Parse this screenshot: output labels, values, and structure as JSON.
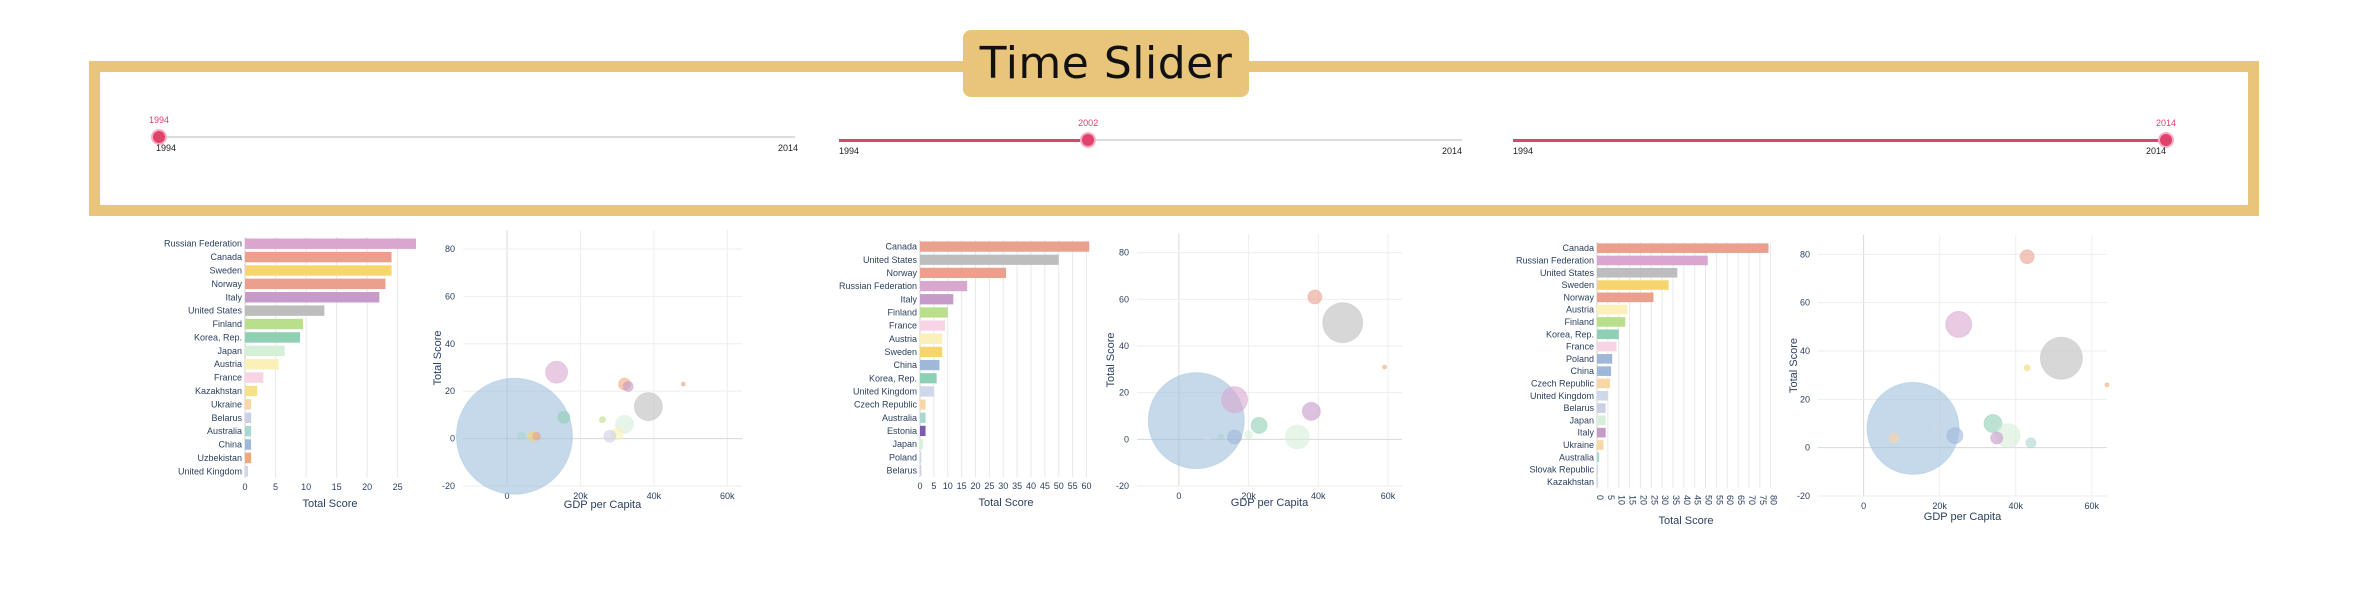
{
  "title": "Time Slider",
  "accent_color": "#e0426b",
  "frame_color": "#e8c57a",
  "sliders": [
    {
      "value": "1994",
      "min_label": "1994",
      "max_label": "2014",
      "fraction": 0.0
    },
    {
      "value": "2002",
      "min_label": "1994",
      "max_label": "2014",
      "fraction": 0.4
    },
    {
      "value": "2014",
      "min_label": "1994",
      "max_label": "2014",
      "fraction": 1.0
    }
  ],
  "chart_data": [
    {
      "type": "bar",
      "orientation": "horizontal",
      "xlabel": "Total Score",
      "xlim": [
        0,
        28
      ],
      "xticks": [
        "0",
        "5",
        "10",
        "15",
        "20",
        "25"
      ],
      "categories": [
        "Russian Federation",
        "Canada",
        "Sweden",
        "Norway",
        "Italy",
        "United States",
        "Finland",
        "Korea, Rep.",
        "Japan",
        "Austria",
        "France",
        "Kazakhstan",
        "Ukraine",
        "Belarus",
        "Australia",
        "China",
        "Uzbekistan",
        "United Kingdom"
      ],
      "values": [
        28,
        24,
        24,
        23,
        22,
        13,
        9.5,
        9,
        6.5,
        5.5,
        3,
        2,
        1,
        1,
        1,
        1,
        1,
        0.5
      ],
      "colors": [
        "#d9a6cf",
        "#eba08e",
        "#f7d56e",
        "#eba08e",
        "#c69ac9",
        "#bdbdbd",
        "#b9df8c",
        "#8fcfb4",
        "#d6efd9",
        "#fbf0b8",
        "#f7d3e6",
        "#f7e28a",
        "#f9d6a6",
        "#ccd0e4",
        "#aad7d0",
        "#9fb7d8",
        "#f0a87a",
        "#cfd7ea"
      ]
    },
    {
      "type": "scatter",
      "xlabel": "GDP per Capita",
      "ylabel": "Total Score",
      "xlim": [
        -12000,
        64000
      ],
      "ylim": [
        -20,
        88
      ],
      "xticks": [
        "0",
        "20k",
        "40k",
        "60k"
      ],
      "yticks": [
        "-20",
        "0",
        "20",
        "40",
        "60",
        "80"
      ],
      "points": [
        [
          2000,
          1
        ],
        [
          13500,
          28
        ],
        [
          15500,
          9
        ],
        [
          7000,
          1
        ],
        [
          8000,
          1
        ],
        [
          4000,
          1
        ],
        [
          32000,
          23
        ],
        [
          33000,
          22
        ],
        [
          38500,
          13.5
        ],
        [
          32000,
          6
        ],
        [
          30000,
          2
        ],
        [
          28000,
          1
        ],
        [
          26000,
          8
        ],
        [
          48000,
          23
        ]
      ],
      "sizes": [
        58,
        11,
        6,
        5,
        4,
        4,
        6,
        5,
        14,
        9,
        6,
        6,
        3,
        2
      ],
      "colors": [
        "#9fc0dd",
        "#d9a6cf",
        "#8fcfb4",
        "#f7d56e",
        "#eba08e",
        "#aad7d0",
        "#f0a87a",
        "#c69ac9",
        "#bdbdbd",
        "#d6efd9",
        "#fbf0b8",
        "#ccd0e4",
        "#b9df8c",
        "#eba08e"
      ]
    },
    {
      "type": "bar",
      "orientation": "horizontal",
      "xlabel": "Total Score",
      "xlim": [
        0,
        62
      ],
      "xticks": [
        "0",
        "5",
        "10",
        "15",
        "20",
        "25",
        "30",
        "35",
        "40",
        "45",
        "50",
        "55",
        "60"
      ],
      "categories": [
        "Canada",
        "United States",
        "Norway",
        "Russian Federation",
        "Italy",
        "Finland",
        "France",
        "Austria",
        "Sweden",
        "China",
        "Korea, Rep.",
        "United Kingdom",
        "Czech Republic",
        "Australia",
        "Estonia",
        "Japan",
        "Poland",
        "Belarus"
      ],
      "values": [
        61,
        50,
        31,
        17,
        12,
        10,
        9,
        8,
        8,
        7,
        6,
        5,
        2,
        2,
        2,
        1,
        0.5,
        0.5
      ],
      "colors": [
        "#eba08e",
        "#bdbdbd",
        "#eba08e",
        "#d9a6cf",
        "#c69ac9",
        "#b9df8c",
        "#f7d3e6",
        "#fbf0b8",
        "#f7d56e",
        "#9fb7d8",
        "#8fcfb4",
        "#cfd7ea",
        "#f9d6a6",
        "#aad7d0",
        "#7b5cb0",
        "#d6efd9",
        "#cfd7ea",
        "#ccd0e4"
      ]
    },
    {
      "type": "scatter",
      "xlabel": "GDP per Capita",
      "ylabel": "Total Score",
      "xlim": [
        -12000,
        64000
      ],
      "ylim": [
        -20,
        88
      ],
      "xticks": [
        "0",
        "20k",
        "40k",
        "60k"
      ],
      "yticks": [
        "-20",
        "0",
        "20",
        "40",
        "60",
        "80"
      ],
      "points": [
        [
          5000,
          8
        ],
        [
          16000,
          17
        ],
        [
          16000,
          1
        ],
        [
          23000,
          6
        ],
        [
          20000,
          2
        ],
        [
          34000,
          1
        ],
        [
          38000,
          12
        ],
        [
          39000,
          61
        ],
        [
          47000,
          50
        ],
        [
          59000,
          31
        ],
        [
          12000,
          1
        ],
        [
          8000,
          0.5
        ]
      ],
      "sizes": [
        48,
        13,
        7,
        8,
        4,
        12,
        9,
        7,
        20,
        2,
        3,
        3
      ],
      "colors": [
        "#9fc0dd",
        "#d9a6cf",
        "#9fb7d8",
        "#8fcfb4",
        "#d6efd9",
        "#d6efd9",
        "#c69ac9",
        "#eba08e",
        "#bdbdbd",
        "#f0a87a",
        "#aad7d0",
        "#cfd7ea"
      ]
    },
    {
      "type": "bar",
      "orientation": "horizontal",
      "xlabel": "Total Score",
      "xlim": [
        0,
        82
      ],
      "xticks": [
        "0",
        "5",
        "10",
        "15",
        "20",
        "25",
        "30",
        "35",
        "40",
        "45",
        "50",
        "55",
        "60",
        "65",
        "70",
        "75",
        "80"
      ],
      "categories": [
        "Canada",
        "Russian Federation",
        "United States",
        "Sweden",
        "Norway",
        "Austria",
        "Finland",
        "Korea, Rep.",
        "France",
        "Poland",
        "China",
        "Czech Republic",
        "United Kingdom",
        "Belarus",
        "Japan",
        "Italy",
        "Ukraine",
        "Australia",
        "Slovak Republic",
        "Kazakhstan"
      ],
      "values": [
        79,
        51,
        37,
        33,
        26,
        14,
        13,
        10,
        9,
        7,
        6.5,
        6,
        5,
        4,
        4,
        4,
        3,
        1,
        0.5,
        0.5
      ],
      "colors": [
        "#eba08e",
        "#d9a6cf",
        "#bdbdbd",
        "#f7d56e",
        "#eba08e",
        "#fbf0b8",
        "#b9df8c",
        "#8fcfb4",
        "#f7d3e6",
        "#9fb7d8",
        "#9fb7d8",
        "#f9d6a6",
        "#cfd7ea",
        "#ccd0e4",
        "#d6efd9",
        "#c69ac9",
        "#f9d6a6",
        "#aad7d0",
        "#cfd7ea",
        "#cfd7ea"
      ]
    },
    {
      "type": "scatter",
      "xlabel": "GDP per Capita",
      "ylabel": "Total Score",
      "xlim": [
        -12000,
        64000
      ],
      "ylim": [
        -20,
        88
      ],
      "xticks": [
        "0",
        "20k",
        "40k",
        "60k"
      ],
      "yticks": [
        "-20",
        "0",
        "20",
        "40",
        "60",
        "80"
      ],
      "points": [
        [
          13000,
          8
        ],
        [
          25000,
          51
        ],
        [
          24000,
          5
        ],
        [
          34000,
          10
        ],
        [
          38000,
          5
        ],
        [
          43000,
          79
        ],
        [
          52000,
          37
        ],
        [
          43000,
          33
        ],
        [
          64000,
          26
        ],
        [
          8000,
          4
        ],
        [
          19000,
          8
        ],
        [
          35000,
          4
        ],
        [
          44000,
          2
        ]
      ],
      "sizes": [
        46,
        13,
        8,
        9,
        12,
        7,
        21,
        3,
        2,
        5,
        4,
        6,
        5
      ],
      "colors": [
        "#9fc0dd",
        "#d9a6cf",
        "#9fb7d8",
        "#8fcfb4",
        "#d6efd9",
        "#eba08e",
        "#bdbdbd",
        "#f7d56e",
        "#f0a87a",
        "#f9d6a6",
        "#cfd7ea",
        "#c69ac9",
        "#aad7d0"
      ]
    }
  ]
}
